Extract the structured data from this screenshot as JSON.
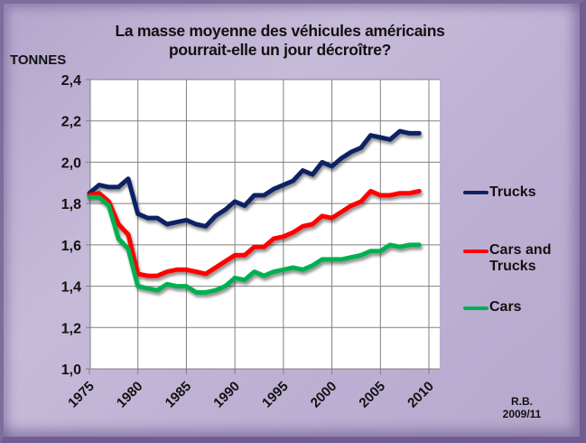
{
  "chart_data": {
    "type": "line",
    "title": "La masse moyenne des véhicules américains pourrait-elle un jour décroître?",
    "title_lines": [
      "La masse moyenne des véhicules américains",
      "pourrait-elle un jour décroître?"
    ],
    "ylabel": "TONNES",
    "xlabel": "",
    "ylim": [
      1.0,
      2.4
    ],
    "xlim": [
      1975,
      2010
    ],
    "yticks": [
      "1,0",
      "1,2",
      "1,4",
      "1,6",
      "1,8",
      "2,0",
      "2,2",
      "2,4"
    ],
    "ytick_values": [
      1.0,
      1.2,
      1.4,
      1.6,
      1.8,
      2.0,
      2.2,
      2.4
    ],
    "xticks": [
      "1975",
      "1980",
      "1985",
      "1990",
      "1995",
      "2000",
      "2005",
      "2010"
    ],
    "xtick_values": [
      1975,
      1980,
      1985,
      1990,
      1995,
      2000,
      2005,
      2010
    ],
    "grid": true,
    "legend_position": "right",
    "x": [
      1975,
      1976,
      1977,
      1978,
      1979,
      1980,
      1981,
      1982,
      1983,
      1984,
      1985,
      1986,
      1987,
      1988,
      1989,
      1990,
      1991,
      1992,
      1993,
      1994,
      1995,
      1996,
      1997,
      1998,
      1999,
      2000,
      2001,
      2002,
      2003,
      2004,
      2005,
      2006,
      2007,
      2008,
      2009
    ],
    "series": [
      {
        "name": "Trucks",
        "color": "#0d2463",
        "values": [
          1.85,
          1.89,
          1.88,
          1.88,
          1.92,
          1.75,
          1.73,
          1.73,
          1.7,
          1.71,
          1.72,
          1.7,
          1.69,
          1.74,
          1.77,
          1.81,
          1.79,
          1.84,
          1.84,
          1.87,
          1.89,
          1.91,
          1.96,
          1.94,
          2.0,
          1.98,
          2.02,
          2.05,
          2.07,
          2.13,
          2.12,
          2.11,
          2.15,
          2.14,
          2.14
        ]
      },
      {
        "name": "Cars and Trucks",
        "color": "#ff0000",
        "values": [
          1.84,
          1.85,
          1.81,
          1.7,
          1.65,
          1.46,
          1.45,
          1.45,
          1.47,
          1.48,
          1.48,
          1.47,
          1.46,
          1.49,
          1.52,
          1.55,
          1.55,
          1.59,
          1.59,
          1.63,
          1.64,
          1.66,
          1.69,
          1.7,
          1.74,
          1.73,
          1.76,
          1.79,
          1.81,
          1.86,
          1.84,
          1.84,
          1.85,
          1.85,
          1.86
        ]
      },
      {
        "name": "Cars",
        "color": "#00b050",
        "values": [
          1.83,
          1.83,
          1.79,
          1.63,
          1.58,
          1.4,
          1.39,
          1.38,
          1.41,
          1.4,
          1.4,
          1.37,
          1.37,
          1.38,
          1.4,
          1.44,
          1.43,
          1.47,
          1.45,
          1.47,
          1.48,
          1.49,
          1.48,
          1.5,
          1.53,
          1.53,
          1.53,
          1.54,
          1.55,
          1.57,
          1.57,
          1.6,
          1.59,
          1.6,
          1.6
        ]
      }
    ],
    "annotation": [
      "R.B.",
      "2009/11"
    ]
  },
  "legend": {
    "items": [
      {
        "label_lines": [
          "Trucks"
        ]
      },
      {
        "label_lines": [
          "Cars and",
          "Trucks"
        ]
      },
      {
        "label_lines": [
          "Cars"
        ]
      }
    ]
  }
}
